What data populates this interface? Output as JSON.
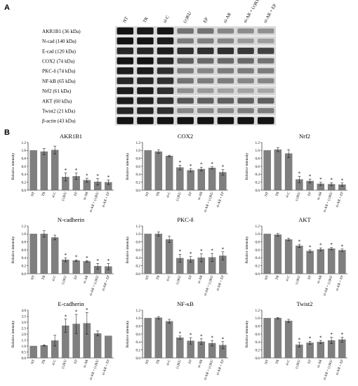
{
  "panels": {
    "a": "A",
    "b": "B"
  },
  "western_blot": {
    "lanes": [
      "NT",
      "TR",
      "si-C",
      "(±)KU",
      "EP",
      "si-AR",
      "si-AR + (±)KU",
      "si-AR + EP"
    ],
    "bands": [
      {
        "label": "AKR1B1 (36 kDa)",
        "intensity": [
          0.95,
          0.92,
          0.93,
          0.45,
          0.45,
          0.35,
          0.32,
          0.3
        ]
      },
      {
        "label": "N-cad (140 kDa)",
        "intensity": [
          0.95,
          0.95,
          0.9,
          0.4,
          0.38,
          0.35,
          0.25,
          0.22
        ]
      },
      {
        "label": "E-cad (120 kDa)",
        "intensity": [
          0.85,
          0.85,
          0.9,
          0.8,
          0.8,
          0.8,
          0.75,
          0.7
        ]
      },
      {
        "label": "COX2 (74 kDa)",
        "intensity": [
          0.95,
          0.95,
          0.85,
          0.55,
          0.5,
          0.5,
          0.5,
          0.45
        ]
      },
      {
        "label": "PKC-δ (74 kDa)",
        "intensity": [
          0.9,
          0.9,
          0.8,
          0.4,
          0.35,
          0.4,
          0.4,
          0.4
        ]
      },
      {
        "label": "NF-kB (65 kDa)",
        "intensity": [
          0.85,
          0.85,
          0.8,
          0.45,
          0.4,
          0.4,
          0.35,
          0.35
        ]
      },
      {
        "label": "Nrf2 (61 kDa)",
        "intensity": [
          0.9,
          0.9,
          0.8,
          0.3,
          0.25,
          0.2,
          0.2,
          0.18
        ]
      },
      {
        "label": "AKT (60 kDa)",
        "intensity": [
          0.9,
          0.88,
          0.8,
          0.6,
          0.55,
          0.55,
          0.55,
          0.55
        ]
      },
      {
        "label": "Twist2 (21 kDa)",
        "intensity": [
          0.85,
          0.85,
          0.8,
          0.35,
          0.35,
          0.35,
          0.4,
          0.4
        ]
      },
      {
        "label": "β-actin (43 kDa)",
        "intensity": [
          0.95,
          0.95,
          0.95,
          0.95,
          0.95,
          0.95,
          0.95,
          0.95
        ]
      }
    ]
  },
  "chart_data": [
    {
      "type": "bar",
      "title": "AKR1B1",
      "ylabel": "Relative intensity",
      "categories": [
        "NT",
        "TR",
        "si-C",
        "(±)KU",
        "EP",
        "si-AR",
        "si-AR + (±)KU",
        "si-AR + EP"
      ],
      "values": [
        1.0,
        0.97,
        1.01,
        0.33,
        0.35,
        0.25,
        0.21,
        0.2
      ],
      "errors": [
        0,
        0.08,
        0.1,
        0.1,
        0.08,
        0.05,
        0.08,
        0.06
      ],
      "significant": [
        false,
        false,
        false,
        true,
        true,
        true,
        true,
        true
      ],
      "ylim": [
        0,
        1.2
      ],
      "yticks": [
        0,
        0.2,
        0.4,
        0.6,
        0.8,
        1.0,
        1.2
      ]
    },
    {
      "type": "bar",
      "title": "COX2",
      "ylabel": "Relative intensity",
      "categories": [
        "NT",
        "TR",
        "si-C",
        "(±)KU",
        "EP",
        "si-AR",
        "si-AR + (±)KU",
        "si-AR + EP"
      ],
      "values": [
        1.0,
        0.97,
        0.86,
        0.57,
        0.5,
        0.53,
        0.56,
        0.45
      ],
      "errors": [
        0,
        0.04,
        0.02,
        0.06,
        0.04,
        0.05,
        0.03,
        0.07
      ],
      "significant": [
        false,
        false,
        false,
        true,
        true,
        true,
        true,
        true
      ],
      "ylim": [
        0,
        1.2
      ],
      "yticks": [
        0,
        0.2,
        0.4,
        0.6,
        0.8,
        1.0,
        1.2
      ]
    },
    {
      "type": "bar",
      "title": "Nrf2",
      "ylabel": "Relative intensity",
      "categories": [
        "NT",
        "TR",
        "si-C",
        "(±)KU",
        "EP",
        "si-AR",
        "si-AR + (±)KU",
        "si-AR + EP"
      ],
      "values": [
        1.0,
        1.02,
        0.92,
        0.27,
        0.23,
        0.16,
        0.15,
        0.14
      ],
      "errors": [
        0,
        0.05,
        0.1,
        0.08,
        0.05,
        0.04,
        0.04,
        0.04
      ],
      "significant": [
        false,
        false,
        false,
        true,
        true,
        true,
        true,
        true
      ],
      "ylim": [
        0,
        1.2
      ],
      "yticks": [
        0,
        0.2,
        0.4,
        0.6,
        0.8,
        1.0,
        1.2
      ]
    },
    {
      "type": "bar",
      "title": "N-cadherin",
      "ylabel": "Relative intensity",
      "categories": [
        "NT",
        "TR",
        "si-C",
        "(±)KU",
        "EP",
        "si-AR",
        "si-AR + (±)KU",
        "si-AR + EP"
      ],
      "values": [
        1.0,
        1.0,
        0.91,
        0.35,
        0.33,
        0.31,
        0.19,
        0.18
      ],
      "errors": [
        0,
        0.08,
        0.06,
        0.05,
        0.02,
        0.02,
        0.07,
        0.08
      ],
      "significant": [
        false,
        false,
        false,
        true,
        true,
        true,
        true,
        true
      ],
      "ylim": [
        0,
        1.2
      ],
      "yticks": [
        0,
        0.2,
        0.4,
        0.6,
        0.8,
        1.0,
        1.2
      ]
    },
    {
      "type": "bar",
      "title": "PKC-δ",
      "ylabel": "Relative intensity",
      "categories": [
        "NT",
        "TR",
        "si-C",
        "(±)KU",
        "EP",
        "si-AR",
        "si-AR + (±)KU",
        "si-AR + EP"
      ],
      "values": [
        1.0,
        1.0,
        0.86,
        0.39,
        0.36,
        0.4,
        0.41,
        0.45
      ],
      "errors": [
        0,
        0.05,
        0.08,
        0.1,
        0.07,
        0.1,
        0.1,
        0.1
      ],
      "significant": [
        false,
        false,
        false,
        true,
        true,
        true,
        true,
        true
      ],
      "ylim": [
        0,
        1.2
      ],
      "yticks": [
        0,
        0.2,
        0.4,
        0.6,
        0.8,
        1.0,
        1.2
      ]
    },
    {
      "type": "bar",
      "title": "AKT",
      "ylabel": "Relative intensity",
      "categories": [
        "NT",
        "TR",
        "si-C",
        "(±)KU",
        "EP",
        "si-AR",
        "si-AR + (±)KU",
        "si-AR + EP"
      ],
      "values": [
        1.0,
        0.98,
        0.86,
        0.7,
        0.57,
        0.61,
        0.63,
        0.59
      ],
      "errors": [
        0,
        0.03,
        0.03,
        0.04,
        0.03,
        0.04,
        0.03,
        0.03
      ],
      "significant": [
        false,
        false,
        false,
        true,
        true,
        true,
        true,
        true
      ],
      "ylim": [
        0,
        1.2
      ],
      "yticks": [
        0,
        0.2,
        0.4,
        0.6,
        0.8,
        1.0,
        1.2
      ]
    },
    {
      "type": "bar",
      "title": "E-cadherin",
      "ylabel": "Relative intensity",
      "categories": [
        "NT",
        "TR",
        "si-C",
        "(±)KU",
        "EP",
        "si-AR",
        "si-AR + (±)KU",
        "si-AR + EP"
      ],
      "values": [
        1.0,
        1.05,
        1.45,
        2.7,
        2.85,
        2.9,
        2.05,
        1.85
      ],
      "errors": [
        0,
        0.05,
        0.45,
        0.55,
        0.8,
        0.9,
        0.2,
        0.0
      ],
      "significant": [
        false,
        false,
        false,
        true,
        true,
        true,
        false,
        false
      ],
      "ylim": [
        0,
        4.0
      ],
      "yticks": [
        0,
        0.5,
        1.0,
        1.5,
        2.0,
        2.5,
        3.0,
        3.5,
        4.0
      ]
    },
    {
      "type": "bar",
      "title": "NF-κB",
      "ylabel": "Relative intensity",
      "categories": [
        "NT",
        "TR",
        "si-C",
        "(±)KU",
        "EP",
        "si-AR",
        "si-AR + (±)KU",
        "si-AR + EP"
      ],
      "values": [
        1.0,
        1.01,
        0.92,
        0.51,
        0.43,
        0.41,
        0.37,
        0.32
      ],
      "errors": [
        0,
        0.03,
        0.05,
        0.04,
        0.08,
        0.07,
        0.07,
        0.09
      ],
      "significant": [
        false,
        false,
        false,
        true,
        true,
        true,
        true,
        true
      ],
      "ylim": [
        0,
        1.2
      ],
      "yticks": [
        0,
        0.2,
        0.4,
        0.6,
        0.8,
        1.0,
        1.2
      ]
    },
    {
      "type": "bar",
      "title": "Twist2",
      "ylabel": "Relative intensity",
      "categories": [
        "NT",
        "TR",
        "si-C",
        "(±)KU",
        "EP",
        "si-AR",
        "si-AR + (±)KU",
        "si-AR + EP"
      ],
      "values": [
        1.0,
        1.0,
        0.93,
        0.33,
        0.38,
        0.4,
        0.44,
        0.46
      ],
      "errors": [
        0,
        0.02,
        0.04,
        0.06,
        0.04,
        0.04,
        0.08,
        0.06
      ],
      "significant": [
        false,
        false,
        false,
        true,
        true,
        true,
        true,
        true
      ],
      "ylim": [
        0,
        1.2
      ],
      "yticks": [
        0,
        0.2,
        0.4,
        0.6,
        0.8,
        1.0,
        1.2
      ]
    }
  ]
}
